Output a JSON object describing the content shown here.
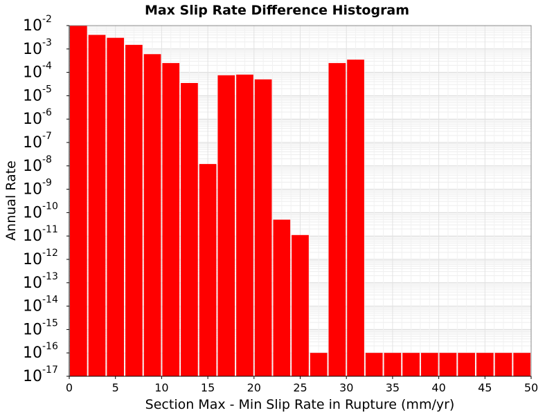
{
  "chart_data": {
    "type": "bar",
    "title": "Max Slip Rate Difference Histogram",
    "xlabel": "Section Max - Min Slip Rate in Rupture (mm/yr)",
    "ylabel": "Annual Rate",
    "xlim": [
      0,
      50
    ],
    "ylim": [
      1e-17,
      0.01
    ],
    "yscale": "log",
    "bin_width": 2,
    "x_ticks": [
      0,
      5,
      10,
      15,
      20,
      25,
      30,
      35,
      40,
      45,
      50
    ],
    "y_tick_exponents": [
      -17,
      -16,
      -15,
      -14,
      -13,
      -12,
      -11,
      -10,
      -9,
      -8,
      -7,
      -6,
      -5,
      -4,
      -3,
      -2
    ],
    "y_tick_base": "10",
    "grid": true,
    "bar_color": "#ff0000",
    "x": [
      1,
      3,
      5,
      7,
      9,
      11,
      13,
      15,
      17,
      19,
      21,
      23,
      25,
      27,
      29,
      31,
      33,
      35,
      37,
      39,
      41,
      43,
      45,
      47,
      49
    ],
    "values": [
      0.01,
      0.004,
      0.003,
      0.0015,
      0.0006,
      0.00025,
      3.5e-05,
      1.2e-08,
      7.5e-05,
      8e-05,
      5e-05,
      5e-11,
      1.1e-11,
      1e-16,
      0.00025,
      0.00035,
      1e-16,
      1e-16,
      1e-16,
      1e-16,
      1e-16,
      1e-16,
      1e-16,
      1e-16,
      1e-16
    ]
  }
}
